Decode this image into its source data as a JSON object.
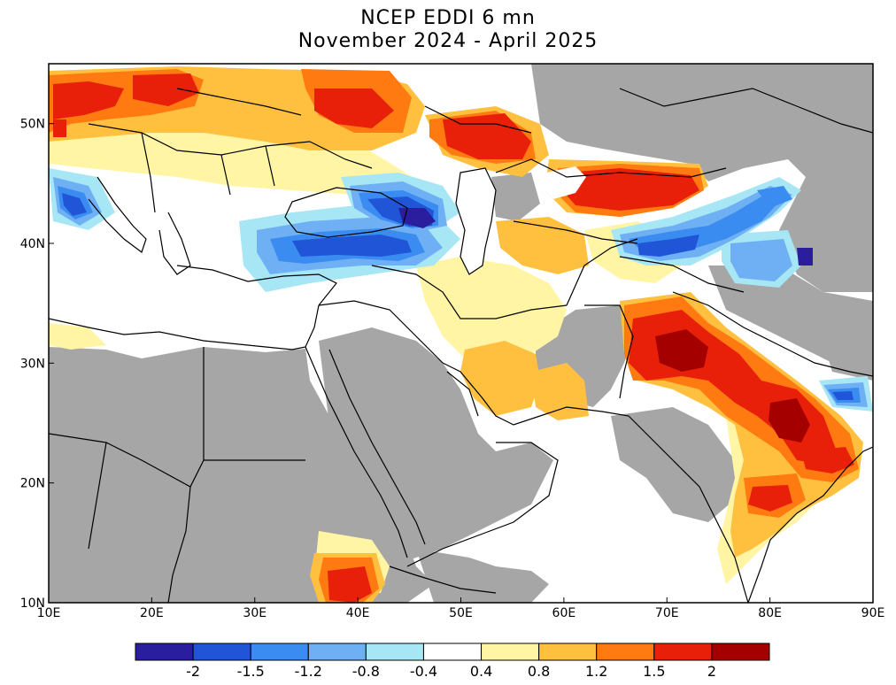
{
  "title": {
    "line1": "NCEP EDDI 6 mn",
    "line2": "November 2024 - April 2025"
  },
  "map": {
    "lon_range": [
      10,
      90
    ],
    "lat_range": [
      10,
      55
    ],
    "lon_ticks": [
      "10E",
      "20E",
      "30E",
      "40E",
      "50E",
      "60E",
      "70E",
      "80E",
      "90E"
    ],
    "lat_ticks": [
      "10N",
      "20N",
      "30N",
      "40N",
      "50N"
    ],
    "masked_color": "#a6a6a6",
    "neutral_color": "#ffffff"
  },
  "colorbar": {
    "colors": [
      "#2a1e9e",
      "#1f55d6",
      "#3b8cf0",
      "#6fb0f5",
      "#a6e6f5",
      "#ffffff",
      "#fff5a5",
      "#ffc040",
      "#ff7a10",
      "#e8200a",
      "#a50000"
    ],
    "labels": [
      "-2",
      "-1.5",
      "-1.2",
      "-0.8",
      "-0.4",
      "0.4",
      "0.8",
      "1.2",
      "1.5",
      "2"
    ]
  },
  "regions": [
    {
      "name": "Eastern Europe / Ukraine",
      "class": "1.5"
    },
    {
      "name": "Southern Russia (Volga)",
      "class": "2"
    },
    {
      "name": "Kazakhstan north",
      "class": "2"
    },
    {
      "name": "Caucasus",
      "class": "-2"
    },
    {
      "name": "Northern Turkey",
      "class": "-1.5"
    },
    {
      "name": "Italy / Adriatic",
      "class": "-1.5"
    },
    {
      "name": "Pakistan",
      "class": "2"
    },
    {
      "name": "Eastern India",
      "class": "2"
    },
    {
      "name": "Southern Iran",
      "class": "1.2"
    },
    {
      "name": "Ethiopia",
      "class": "2"
    },
    {
      "name": "Nepal / Bangladesh",
      "class": "-1.5"
    }
  ]
}
